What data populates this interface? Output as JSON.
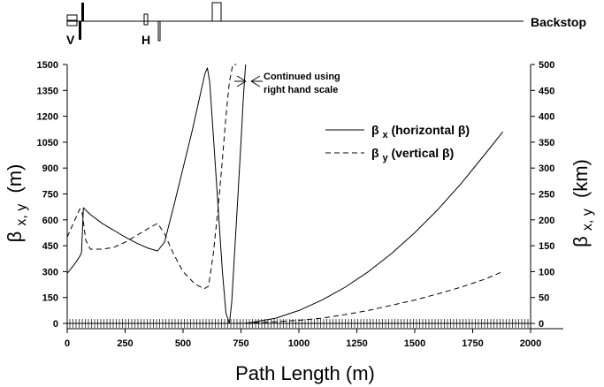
{
  "chart_data": {
    "type": "line",
    "x_axis": {
      "label_main": "Path Length (m)",
      "range": [
        0,
        2000
      ],
      "ticks": [
        0,
        250,
        500,
        750,
        1000,
        1250,
        1500,
        1750,
        2000
      ]
    },
    "y_axis_left": {
      "label_symbol": "β",
      "label_subscript": "x, y",
      "label_units": "(m)",
      "range": [
        0,
        1500
      ],
      "ticks": [
        0,
        150,
        300,
        450,
        600,
        750,
        900,
        1050,
        1200,
        1350,
        1500
      ]
    },
    "y_axis_right": {
      "label_symbol": "β",
      "label_subscript": "x, y",
      "label_units": "(km)",
      "range": [
        0,
        500
      ],
      "ticks": [
        0,
        50,
        100,
        150,
        200,
        250,
        300,
        350,
        400,
        450,
        500
      ]
    },
    "legend": {
      "position": "top-right",
      "entries": [
        {
          "symbol": "β",
          "sub": "x",
          "text": " (horizontal β)",
          "style": "solid"
        },
        {
          "symbol": "β",
          "sub": "y",
          "text": " (vertical β)",
          "style": "dashed"
        }
      ]
    },
    "annotation": {
      "line1": "Continued using",
      "line2": "right hand scale"
    },
    "beamline": {
      "labels": {
        "vertical": "V",
        "horizontal": "H",
        "end": "Backstop"
      }
    },
    "series": [
      {
        "name": "βx (horizontal β)",
        "style": "solid",
        "segments": [
          {
            "scale": "left",
            "x": [
              0,
              30,
              55,
              62,
              70,
              100,
              150,
              200,
              250,
              300,
              350,
              390,
              420,
              460,
              500,
              540,
              570,
              595,
              605,
              615,
              630,
              650,
              670,
              685,
              700
            ],
            "y": [
              290,
              340,
              390,
              410,
              670,
              630,
              580,
              540,
              500,
              465,
              435,
              420,
              470,
              680,
              900,
              1120,
              1300,
              1450,
              1480,
              1400,
              1100,
              700,
              300,
              60,
              0
            ]
          },
          {
            "scale": "left",
            "x": [
              700,
              710,
              720,
              735,
              750,
              760,
              770
            ],
            "y": [
              0,
              120,
              350,
              700,
              1050,
              1300,
              1500
            ]
          },
          {
            "scale": "right",
            "x": [
              770,
              800,
              900,
              1000,
              1100,
              1200,
              1300,
              1400,
              1500,
              1600,
              1700,
              1800,
              1880
            ],
            "y": [
              0,
              2,
              10,
              25,
              45,
              70,
              100,
              135,
              175,
              220,
              270,
              325,
              370
            ]
          }
        ]
      },
      {
        "name": "βy (vertical β)",
        "style": "dashed",
        "segments": [
          {
            "scale": "left",
            "x": [
              0,
              20,
              40,
              55,
              65,
              80,
              100,
              150,
              200,
              250,
              300,
              350,
              390,
              420,
              460,
              500,
              550,
              590,
              610,
              630,
              650,
              670,
              685,
              700,
              715,
              730
            ],
            "y": [
              500,
              560,
              620,
              665,
              640,
              480,
              430,
              430,
              440,
              470,
              510,
              550,
              580,
              520,
              400,
              300,
              230,
              200,
              215,
              400,
              650,
              950,
              1200,
              1400,
              1500,
              1500
            ]
          },
          {
            "scale": "right",
            "x": [
              730,
              800,
              900,
              1000,
              1100,
              1200,
              1300,
              1400,
              1500,
              1600,
              1700,
              1800,
              1880
            ],
            "y": [
              0,
              1,
              3,
              6,
              10,
              17,
              25,
              35,
              45,
              57,
              70,
              85,
              100
            ]
          }
        ]
      }
    ]
  }
}
